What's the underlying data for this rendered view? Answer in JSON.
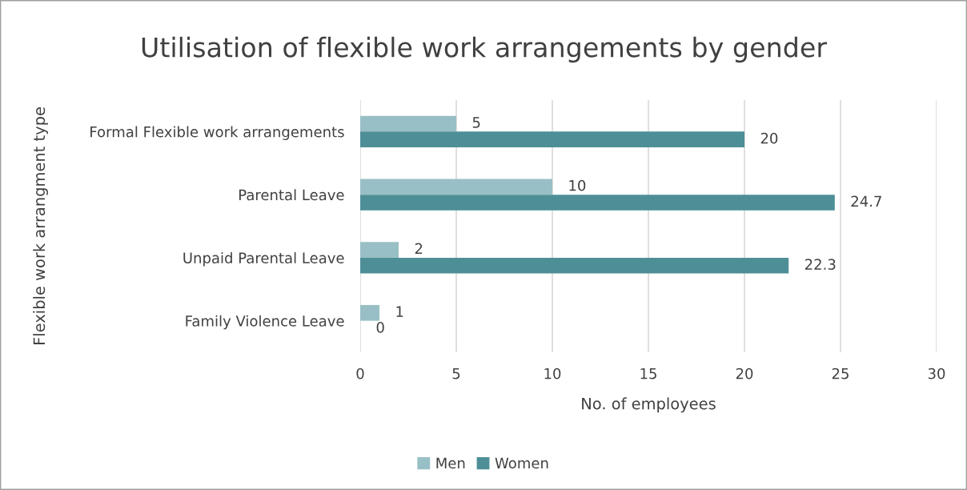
{
  "chart_data": {
    "type": "bar",
    "orientation": "horizontal",
    "title": "Utilisation of flexible work arrangements by gender",
    "xlabel": "No. of employees",
    "ylabel": "Flexible work arrangment type",
    "categories": [
      "Formal Flexible work arrangements",
      "Parental Leave",
      "Unpaid Parental Leave",
      "Family Violence Leave"
    ],
    "series": [
      {
        "name": "Men",
        "color": "#98bfc5",
        "values": [
          5,
          10,
          2,
          1
        ]
      },
      {
        "name": "Women",
        "color": "#4e8f97",
        "values": [
          20,
          24.7,
          22.3,
          0
        ]
      }
    ],
    "xlim": [
      0,
      30
    ],
    "xticks": [
      0,
      5,
      10,
      15,
      20,
      25,
      30
    ],
    "grid": "x",
    "legend": "bottom",
    "data_labels": true
  }
}
